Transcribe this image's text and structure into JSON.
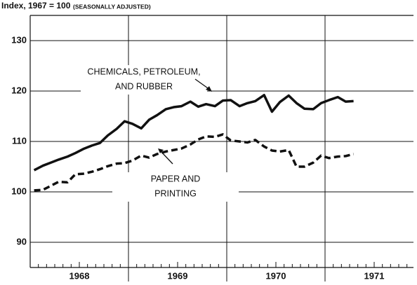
{
  "chart_data": {
    "type": "line",
    "title": "Index, 1967 = 100",
    "subtitle": "(SEASONALLY ADJUSTED)",
    "x": [
      1968.04,
      1968.13,
      1968.21,
      1968.29,
      1968.38,
      1968.46,
      1968.54,
      1968.63,
      1968.71,
      1968.79,
      1968.88,
      1968.96,
      1969.04,
      1969.13,
      1969.21,
      1969.29,
      1969.38,
      1969.46,
      1969.54,
      1969.63,
      1969.71,
      1969.79,
      1969.88,
      1969.96,
      1970.04,
      1970.13,
      1970.21,
      1970.29,
      1970.38,
      1970.46,
      1970.54,
      1970.63,
      1970.71,
      1970.79,
      1970.88,
      1970.96,
      1971.04,
      1971.13,
      1971.21,
      1971.29
    ],
    "series": [
      {
        "color": "#111111",
        "dash": false,
        "values": [
          104.3,
          105.2,
          105.8,
          106.4,
          107.0,
          107.7,
          108.5,
          109.2,
          109.7,
          111.2,
          112.5,
          114.0,
          113.5,
          112.6,
          114.3,
          115.2,
          116.4,
          116.8,
          117.0,
          117.9,
          116.9,
          117.4,
          117.0,
          118.1,
          118.2,
          117.0,
          117.6,
          118.0,
          119.2,
          115.9,
          117.8,
          119.1,
          117.6,
          116.5,
          116.4,
          117.6,
          118.2,
          118.8,
          117.9,
          118.0
        ]
      },
      {
        "color": "#111111",
        "dash": true,
        "values": [
          100.3,
          100.4,
          101.2,
          102.0,
          101.9,
          103.5,
          103.6,
          104.0,
          104.5,
          105.1,
          105.6,
          105.7,
          106.2,
          107.2,
          106.8,
          107.5,
          108.0,
          108.3,
          108.6,
          109.4,
          110.4,
          111.0,
          110.9,
          111.4,
          110.2,
          110.0,
          109.8,
          110.3,
          109.0,
          108.2,
          108.0,
          108.3,
          105.0,
          105.0,
          105.8,
          107.2,
          106.7,
          107.0,
          107.1,
          107.5
        ]
      }
    ],
    "annotations": [
      {
        "lines": [
          "CHEMICALS, PETROLEUM,",
          "AND RUBBER"
        ]
      },
      {
        "lines": [
          "PAPER AND",
          "PRINTING"
        ]
      }
    ],
    "xlim": [
      1968,
      1971.9
    ],
    "xticks": [
      {
        "value": 1968.5,
        "label": "1968"
      },
      {
        "value": 1969.5,
        "label": "1969"
      },
      {
        "value": 1970.5,
        "label": "1970"
      },
      {
        "value": 1971.5,
        "label": "1971"
      }
    ],
    "ylim": [
      85,
      135
    ],
    "yticks": [
      90,
      100,
      110,
      120,
      130
    ],
    "grid": true
  }
}
